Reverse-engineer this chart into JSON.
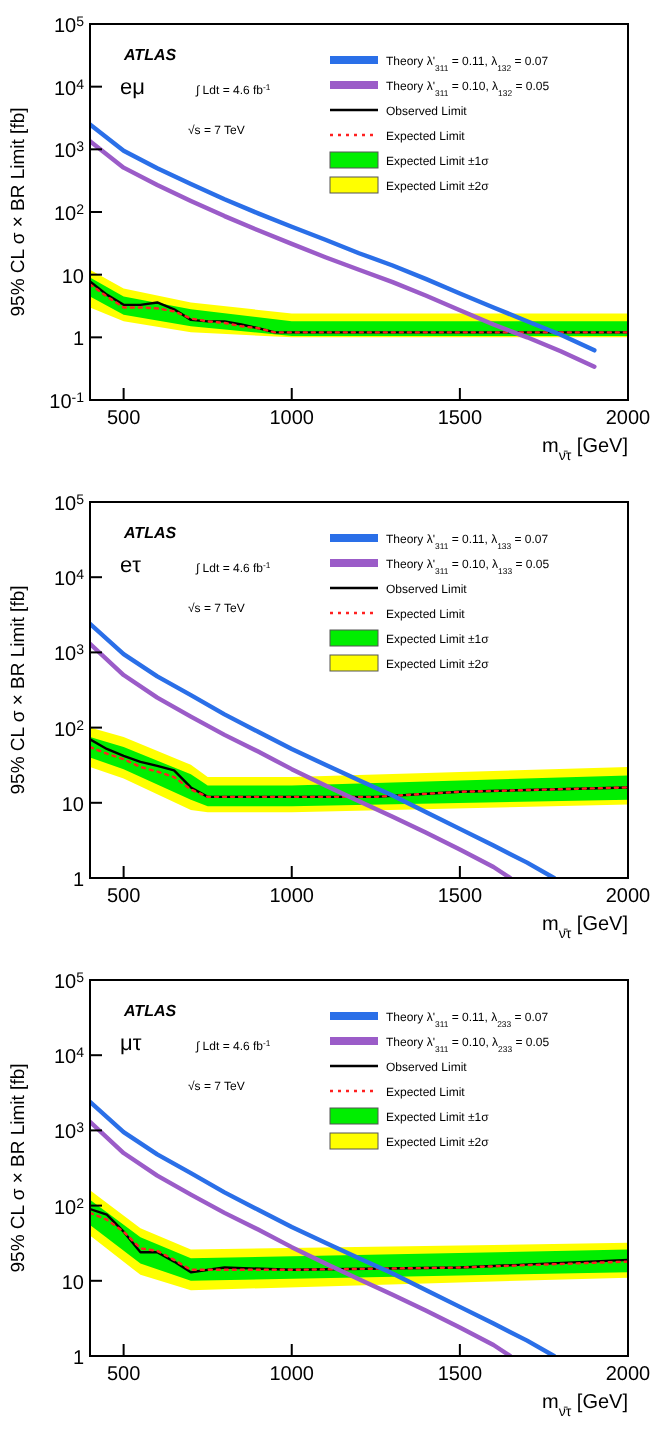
{
  "chart_data": [
    {
      "type": "line",
      "log": "y",
      "legend": "top right",
      "xlabel": "m$_{ν̄τ}$ [GeV]",
      "ylabel": "95% CL σ × BR Limit [fb]",
      "annotations": [
        "ATLAS",
        "eμ",
        "∫ Ldt = 4.6 fb$^{-1}$",
        "√s = 7 TeV"
      ],
      "xlim": [
        400,
        2000
      ],
      "xticks": [
        500,
        1000,
        1500,
        2000
      ],
      "ylim": [
        0.1,
        100000
      ],
      "yticks": [
        {
          "value": 0.1,
          "label": "10$^{-1}$"
        },
        {
          "value": 1,
          "label": "1"
        },
        {
          "value": 10,
          "label": "10"
        },
        {
          "value": 100,
          "label": "10$^{2}$"
        },
        {
          "value": 1000,
          "label": "10$^{3}$"
        },
        {
          "value": 10000,
          "label": "10$^{4}$"
        },
        {
          "value": 100000,
          "label": "10$^{5}$"
        }
      ],
      "series": [
        {
          "name": "Theory λ'$_{311}$ = 0.11, λ$_{132}$ = 0.07",
          "color": "#2a6fe8",
          "x": [
            400,
            500,
            600,
            700,
            800,
            900,
            1000,
            1100,
            1200,
            1300,
            1400,
            1500,
            1600,
            1700,
            1800,
            1900
          ],
          "values": [
            2500,
            950,
            500,
            280,
            160,
            95,
            58,
            36,
            22,
            14,
            8.5,
            5.0,
            3.0,
            1.8,
            1.1,
            0.62
          ]
        },
        {
          "name": "Theory λ'$_{311}$ = 0.10, λ$_{132}$ = 0.05",
          "color": "#9b5cc8",
          "x": [
            400,
            500,
            600,
            700,
            800,
            900,
            1000,
            1100,
            1200,
            1300,
            1400,
            1500,
            1600,
            1700,
            1800,
            1900
          ],
          "values": [
            1350,
            510,
            270,
            150,
            86,
            51,
            31,
            19,
            12,
            7.6,
            4.6,
            2.7,
            1.6,
            1.0,
            0.6,
            0.34
          ]
        },
        {
          "name": "Observed Limit",
          "color": "#000000",
          "x": [
            400,
            450,
            500,
            550,
            600,
            650,
            700,
            750,
            800,
            850,
            900,
            950,
            1000,
            1500,
            2000
          ],
          "values": [
            7.8,
            4.8,
            3.3,
            3.3,
            3.6,
            2.8,
            1.9,
            1.8,
            1.8,
            1.6,
            1.4,
            1.2,
            1.2,
            1.2,
            1.2
          ]
        },
        {
          "name": "Expected Limit",
          "color": "#ff2020",
          "line_style": "dotted",
          "x": [
            400,
            450,
            500,
            550,
            600,
            650,
            700,
            750,
            800,
            850,
            900,
            950,
            1000,
            1500,
            2000
          ],
          "values": [
            7.0,
            4.5,
            3.0,
            3.0,
            2.9,
            2.6,
            2.0,
            1.8,
            1.7,
            1.5,
            1.4,
            1.2,
            1.2,
            1.2,
            1.2
          ]
        },
        {
          "name": "Expected Limit ±1σ",
          "color": "#00ee00",
          "x": [
            400,
            500,
            700,
            1000,
            2000
          ],
          "values": [
            null,
            null,
            null,
            null,
            null
          ],
          "lower": [
            4.5,
            2.3,
            1.5,
            1.05,
            1.05
          ],
          "upper": [
            9,
            4.5,
            2.8,
            1.8,
            1.8
          ]
        },
        {
          "name": "Expected Limit ±2σ",
          "color": "#ffff00",
          "x": [
            400,
            500,
            700,
            1000,
            2000
          ],
          "values": [
            null,
            null,
            null,
            null,
            null
          ],
          "lower": [
            3,
            1.8,
            1.2,
            1.0,
            1.0
          ],
          "upper": [
            12,
            6,
            3.6,
            2.4,
            2.4
          ]
        }
      ]
    },
    {
      "type": "line",
      "log": "y",
      "legend": "top right",
      "xlabel": "m$_{ν̄τ}$ [GeV]",
      "ylabel": "95% CL σ × BR Limit [fb]",
      "annotations": [
        "ATLAS",
        "eτ",
        "∫ Ldt = 4.6 fb$^{-1}$",
        "√s = 7 TeV"
      ],
      "xlim": [
        400,
        2000
      ],
      "xticks": [
        500,
        1000,
        1500,
        2000
      ],
      "ylim": [
        1,
        100000
      ],
      "yticks": [
        {
          "value": 1,
          "label": "1"
        },
        {
          "value": 10,
          "label": "10"
        },
        {
          "value": 100,
          "label": "10$^{2}$"
        },
        {
          "value": 1000,
          "label": "10$^{3}$"
        },
        {
          "value": 10000,
          "label": "10$^{4}$"
        },
        {
          "value": 100000,
          "label": "10$^{5}$"
        }
      ],
      "series": [
        {
          "name": "Theory λ'$_{311}$ = 0.11, λ$_{133}$ = 0.07",
          "color": "#2a6fe8",
          "x": [
            400,
            500,
            600,
            700,
            800,
            900,
            1000,
            1100,
            1200,
            1300,
            1400,
            1500,
            1600,
            1700,
            1780
          ],
          "values": [
            2400,
            950,
            480,
            270,
            150,
            88,
            52,
            32,
            20,
            12.5,
            7.5,
            4.5,
            2.7,
            1.6,
            1.0
          ]
        },
        {
          "name": "Theory λ'$_{311}$ = 0.10, λ$_{133}$ = 0.05",
          "color": "#9b5cc8",
          "x": [
            400,
            500,
            600,
            700,
            800,
            900,
            1000,
            1100,
            1200,
            1300,
            1400,
            1500,
            1600,
            1650
          ],
          "values": [
            1300,
            500,
            250,
            140,
            80,
            48,
            28,
            17,
            10.5,
            6.5,
            4.0,
            2.4,
            1.4,
            1.0
          ]
        },
        {
          "name": "Observed Limit",
          "color": "#000000",
          "x": [
            400,
            450,
            500,
            550,
            600,
            650,
            700,
            750,
            1000,
            1250,
            1500,
            2000
          ],
          "values": [
            70,
            52,
            42,
            35,
            31,
            27,
            16,
            12,
            12,
            12,
            14,
            16
          ]
        },
        {
          "name": "Expected Limit",
          "color": "#ff2020",
          "line_style": "dotted",
          "x": [
            400,
            450,
            500,
            550,
            600,
            650,
            700,
            750,
            1000,
            1250,
            1500,
            2000
          ],
          "values": [
            55,
            45,
            38,
            30,
            26,
            22,
            15,
            12,
            12,
            12,
            14,
            16
          ]
        },
        {
          "name": "Expected Limit ±1σ",
          "color": "#00ee00",
          "x": [
            400,
            500,
            700,
            750,
            1000,
            2000
          ],
          "values": [
            null,
            null,
            null,
            null,
            null,
            null
          ],
          "lower": [
            40,
            28,
            11,
            9,
            9,
            11
          ],
          "upper": [
            75,
            55,
            24,
            17,
            17,
            23
          ]
        },
        {
          "name": "Expected Limit ±2σ",
          "color": "#ffff00",
          "x": [
            400,
            500,
            700,
            750,
            1000,
            2000
          ],
          "values": [
            null,
            null,
            null,
            null,
            null,
            null
          ],
          "lower": [
            30,
            21,
            8,
            7.5,
            7.5,
            9.5
          ],
          "upper": [
            100,
            75,
            32,
            22,
            22,
            30
          ]
        }
      ]
    },
    {
      "type": "line",
      "log": "y",
      "legend": "top right",
      "xlabel": "m$_{ν̄τ}$ [GeV]",
      "ylabel": "95% CL σ × BR Limit [fb]",
      "annotations": [
        "ATLAS",
        "μτ",
        "∫ Ldt = 4.6 fb$^{-1}$",
        "√s = 7 TeV"
      ],
      "xlim": [
        400,
        2000
      ],
      "xticks": [
        500,
        1000,
        1500,
        2000
      ],
      "ylim": [
        1,
        100000
      ],
      "yticks": [
        {
          "value": 1,
          "label": "1"
        },
        {
          "value": 10,
          "label": "10"
        },
        {
          "value": 100,
          "label": "10$^{2}$"
        },
        {
          "value": 1000,
          "label": "10$^{3}$"
        },
        {
          "value": 10000,
          "label": "10$^{4}$"
        },
        {
          "value": 100000,
          "label": "10$^{5}$"
        }
      ],
      "series": [
        {
          "name": "Theory λ'$_{311}$ = 0.11, λ$_{233}$ = 0.07",
          "color": "#2a6fe8",
          "x": [
            400,
            500,
            600,
            700,
            800,
            900,
            1000,
            1100,
            1200,
            1300,
            1400,
            1500,
            1600,
            1700,
            1780
          ],
          "values": [
            2400,
            950,
            480,
            270,
            150,
            88,
            52,
            32,
            20,
            12.5,
            7.5,
            4.5,
            2.7,
            1.6,
            1.0
          ]
        },
        {
          "name": "Theory λ'$_{311}$ = 0.10, λ$_{233}$ = 0.05",
          "color": "#9b5cc8",
          "x": [
            400,
            500,
            600,
            700,
            800,
            900,
            1000,
            1100,
            1200,
            1300,
            1400,
            1500,
            1600,
            1650
          ],
          "values": [
            1300,
            500,
            250,
            140,
            80,
            48,
            28,
            17,
            10.5,
            6.5,
            4.0,
            2.4,
            1.4,
            1.0
          ]
        },
        {
          "name": "Observed Limit",
          "color": "#000000",
          "x": [
            400,
            450,
            500,
            550,
            600,
            650,
            700,
            800,
            1000,
            1500,
            2000
          ],
          "values": [
            90,
            76,
            45,
            24,
            24,
            18,
            13,
            15,
            14,
            15,
            19
          ]
        },
        {
          "name": "Expected Limit",
          "color": "#ff2020",
          "line_style": "dotted",
          "x": [
            400,
            450,
            500,
            550,
            600,
            650,
            700,
            800,
            1000,
            1500,
            2000
          ],
          "values": [
            80,
            65,
            45,
            27,
            25,
            19,
            14,
            14,
            14,
            15,
            18
          ]
        },
        {
          "name": "Expected Limit ±1σ",
          "color": "#00ee00",
          "x": [
            400,
            550,
            700,
            2000
          ],
          "values": [
            null,
            null,
            null,
            null
          ],
          "lower": [
            55,
            17,
            10,
            13
          ],
          "upper": [
            120,
            38,
            20,
            26
          ]
        },
        {
          "name": "Expected Limit ±2σ",
          "color": "#ffff00",
          "x": [
            400,
            550,
            700,
            2000
          ],
          "values": [
            null,
            null,
            null,
            null
          ],
          "lower": [
            40,
            12,
            7.5,
            11
          ],
          "upper": [
            160,
            50,
            26,
            32
          ]
        }
      ]
    }
  ]
}
